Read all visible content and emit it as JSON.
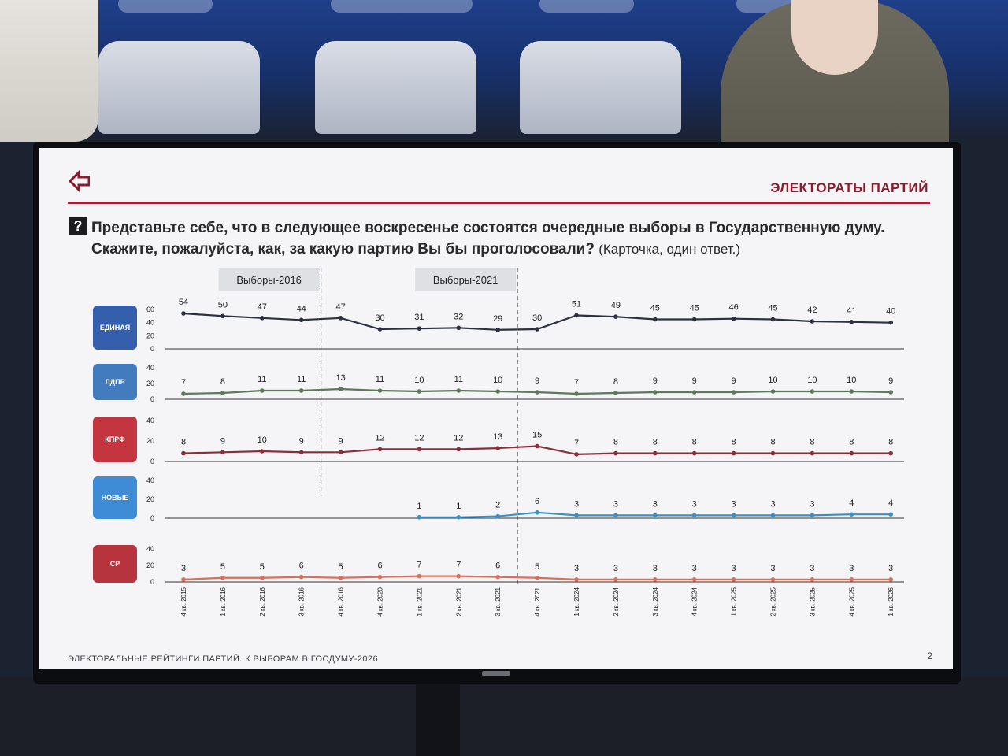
{
  "slide": {
    "section_title": "ЭЛЕКТОРАТЫ ПАРТИЙ",
    "question_icon": "?",
    "question_main": "Представьте себе, что в следующее воскресенье состоятся очередные выборы в Государственную думу. Скажите, пожалуйста, как, за какую партию Вы бы проголосовали?",
    "question_note": "(Карточка, один ответ.)",
    "footer": "ЭЛЕКТОРАЛЬНЫЕ РЕЙТИНГИ ПАРТИЙ. К ВЫБОРАМ В ГОСДУМУ-2026",
    "page_number": "2",
    "brand_logo_icon": "arrow-logo-icon"
  },
  "chart_data": {
    "type": "line",
    "categories": [
      "4 кв. 2015",
      "1 кв. 2016",
      "2 кв. 2016",
      "3 кв. 2016",
      "4 кв. 2016",
      "4 кв. 2020",
      "1 кв. 2021",
      "2 кв. 2021",
      "3 кв. 2021",
      "4 кв. 2021",
      "1 кв. 2024",
      "2 кв. 2024",
      "3 кв. 2024",
      "4 кв. 2024",
      "1 кв. 2025",
      "2 кв. 2025",
      "3 кв. 2025",
      "4 кв. 2025",
      "1 кв. 2026"
    ],
    "markers": [
      {
        "label": "Выборы-2016",
        "after_index": 3
      },
      {
        "label": "Выборы-2021",
        "after_index": 8
      }
    ],
    "panels": [
      {
        "party_logo": "ЕДИНАЯ РОССИЯ",
        "color": "#2b3142",
        "yticks": [
          0,
          20,
          40,
          60
        ],
        "ylim": [
          0,
          60
        ],
        "values": [
          54,
          50,
          47,
          44,
          47,
          30,
          31,
          32,
          29,
          30,
          51,
          49,
          45,
          45,
          46,
          45,
          42,
          41,
          40
        ]
      },
      {
        "party_logo": "ЛДПР",
        "color": "#5a7a58",
        "yticks": [
          0,
          20,
          40
        ],
        "ylim": [
          0,
          40
        ],
        "values": [
          7,
          8,
          11,
          11,
          13,
          11,
          10,
          11,
          10,
          9,
          7,
          8,
          9,
          9,
          9,
          10,
          10,
          10,
          9
        ]
      },
      {
        "party_logo": "КПРФ",
        "color": "#8a2f3a",
        "yticks": [
          0,
          20,
          40
        ],
        "ylim": [
          0,
          40
        ],
        "values": [
          8,
          9,
          10,
          9,
          9,
          12,
          12,
          12,
          13,
          15,
          7,
          8,
          8,
          8,
          8,
          8,
          8,
          8,
          8
        ]
      },
      {
        "party_logo": "НОВЫЕ ЛЮДИ",
        "color": "#3b8fc8",
        "yticks": [
          0,
          20,
          40
        ],
        "ylim": [
          0,
          40
        ],
        "values": [
          null,
          null,
          null,
          null,
          null,
          null,
          1,
          1,
          2,
          6,
          3,
          3,
          3,
          3,
          3,
          3,
          3,
          4,
          4
        ]
      },
      {
        "party_logo": "СР СПРАВЕДЛИВАЯ РОССИЯ",
        "color": "#d8705c",
        "yticks": [
          0,
          20,
          40
        ],
        "ylim": [
          0,
          40
        ],
        "values": [
          3,
          5,
          5,
          6,
          5,
          6,
          7,
          7,
          6,
          5,
          3,
          3,
          3,
          3,
          3,
          3,
          3,
          3,
          3
        ]
      }
    ]
  }
}
